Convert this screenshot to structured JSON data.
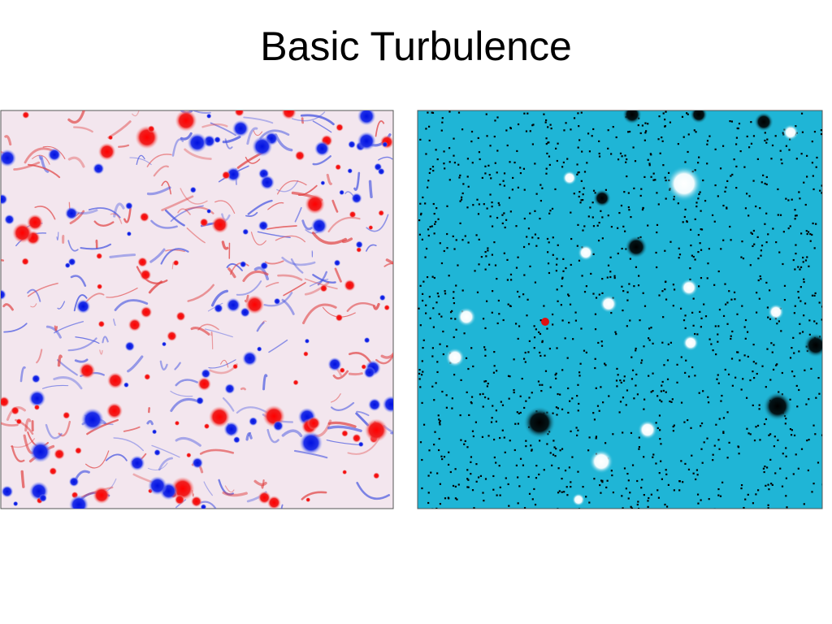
{
  "header": {
    "title": "Basic Turbulence"
  }
}
